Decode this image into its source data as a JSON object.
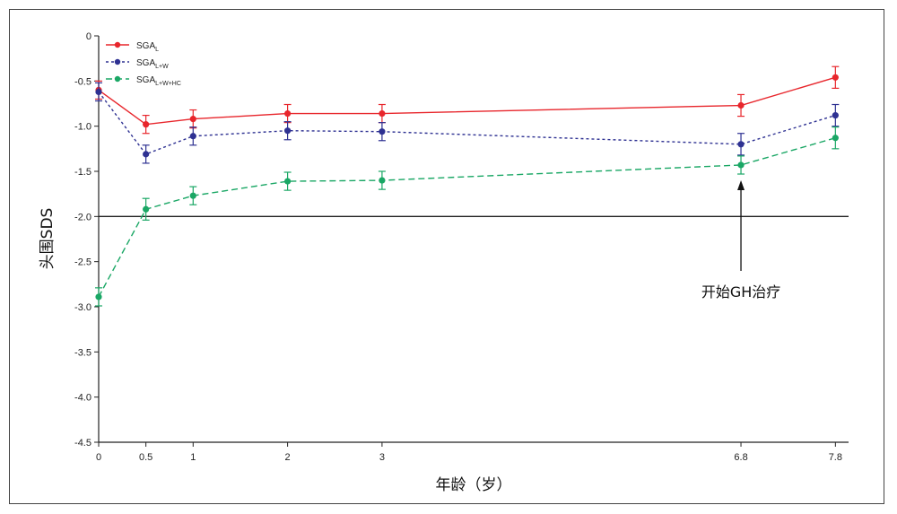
{
  "chart_data": {
    "type": "line",
    "title": "",
    "xlabel": "年龄（岁）",
    "ylabel": "头围SDS",
    "x": [
      0,
      0.5,
      1,
      2,
      3,
      6.8,
      7.8
    ],
    "x_tick_labels": [
      "0",
      "0.5",
      "1",
      "2",
      "3",
      "6.8",
      "7.8"
    ],
    "xlim": [
      0,
      8
    ],
    "ylim": [
      -4.5,
      0
    ],
    "y_ticks": [
      0,
      -0.5,
      -1.0,
      -1.5,
      -2.0,
      -2.5,
      -3.0,
      -3.5,
      -4.0,
      -4.5
    ],
    "y_tick_labels": [
      "0",
      "-0.5",
      "-1.0",
      "-1.5",
      "-2.0",
      "-2.5",
      "-3.0",
      "-3.5",
      "-4.0",
      "-4.5"
    ],
    "reference_line": {
      "y": -2.0
    },
    "legend_position": "top-left",
    "grid": false,
    "series": [
      {
        "name": "SGA",
        "subscript": "L",
        "color": "#e8262c",
        "dash": "solid",
        "values": [
          -0.6,
          -0.98,
          -0.92,
          -0.86,
          -0.86,
          -0.77,
          -0.46
        ],
        "error": [
          0.1,
          0.1,
          0.1,
          0.1,
          0.1,
          0.12,
          0.12
        ]
      },
      {
        "name": "SGA",
        "subscript": "L+W",
        "color": "#2e3192",
        "dash": "dotted",
        "values": [
          -0.62,
          -1.31,
          -1.11,
          -1.05,
          -1.06,
          -1.2,
          -0.88
        ],
        "error": [
          0.1,
          0.1,
          0.1,
          0.1,
          0.1,
          0.12,
          0.12
        ]
      },
      {
        "name": "SGA",
        "subscript": "L+W+HC",
        "color": "#1aa765",
        "dash": "dashed",
        "values": [
          -2.89,
          -1.92,
          -1.77,
          -1.61,
          -1.6,
          -1.43,
          -1.13
        ],
        "error": [
          0.1,
          0.12,
          0.1,
          0.1,
          0.1,
          0.1,
          0.12
        ]
      }
    ],
    "annotation": {
      "text": "开始GH治疗",
      "x": 6.8
    }
  }
}
